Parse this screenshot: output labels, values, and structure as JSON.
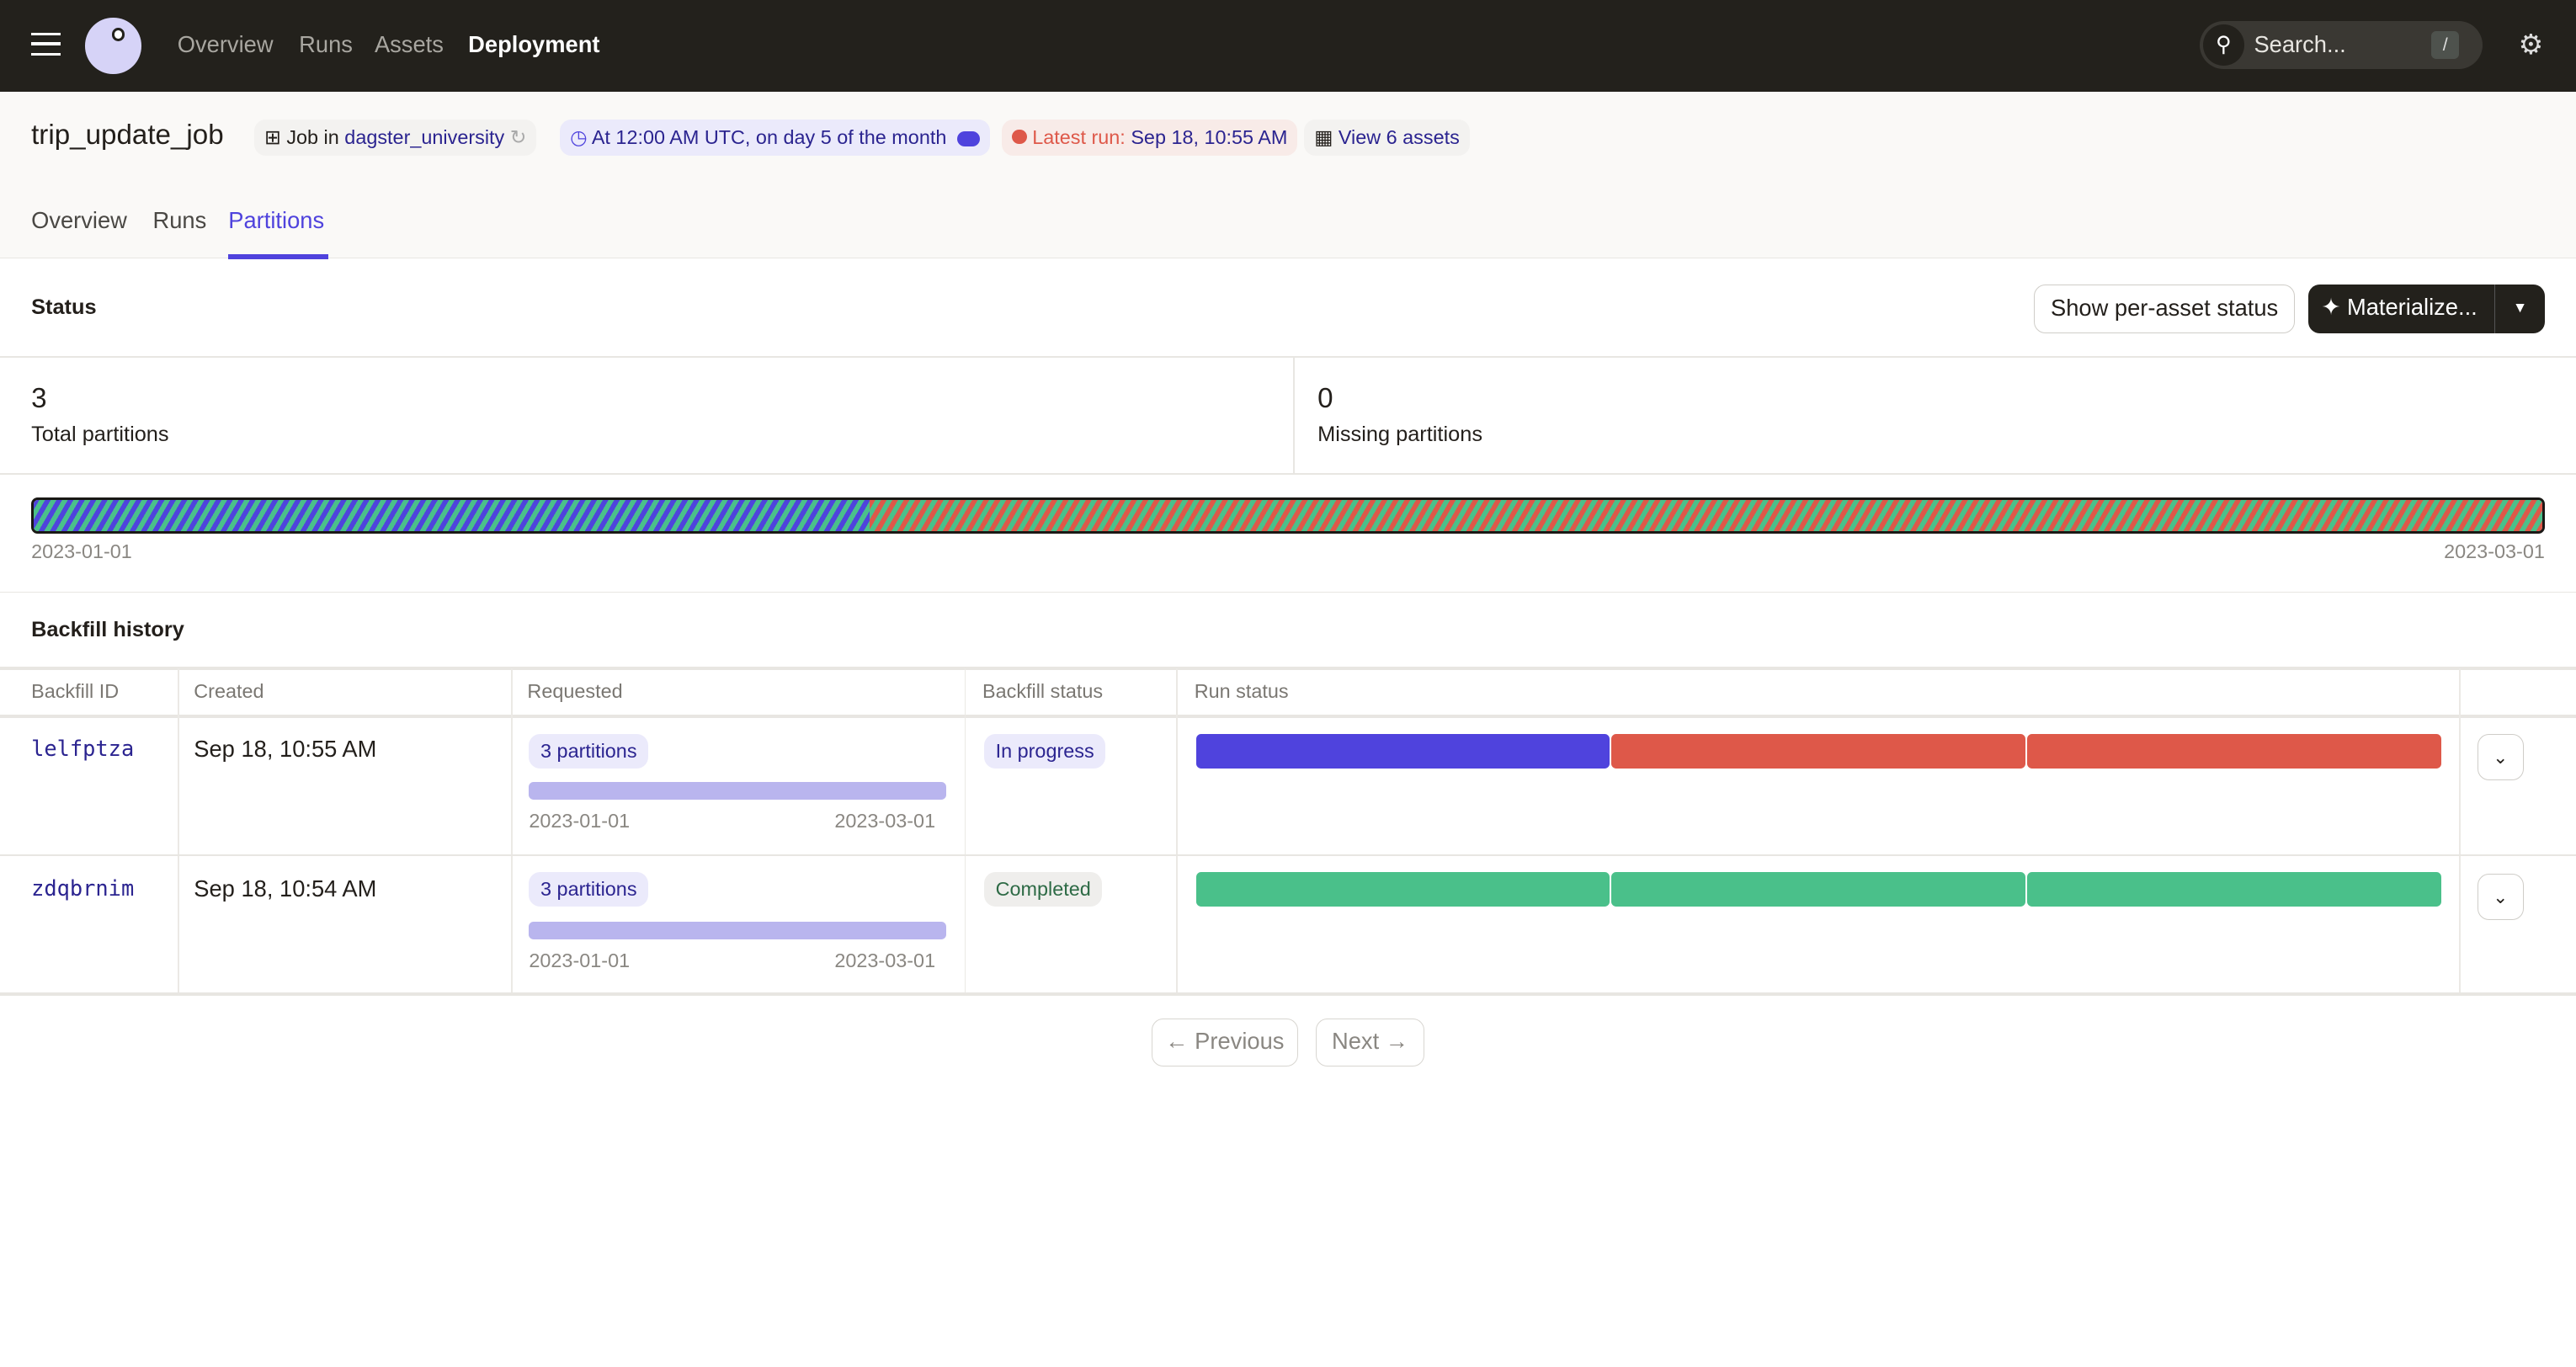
{
  "topbar": {
    "nav": [
      "Overview",
      "Runs",
      "Assets",
      "Deployment"
    ],
    "active": "Deployment",
    "search_placeholder": "Search...",
    "search_shortcut": "/"
  },
  "job": {
    "title": "trip_update_job",
    "job_in_label": "Job in",
    "location": "dagster_university",
    "schedule": "At 12:00 AM UTC, on day 5 of the month",
    "latest_run_label": "Latest run:",
    "latest_run_value": "Sep 18, 10:55 AM",
    "view_assets": "View 6 assets"
  },
  "tabs": [
    "Overview",
    "Runs",
    "Partitions"
  ],
  "active_tab": "Partitions",
  "status": {
    "title": "Status",
    "show_per_asset": "Show per-asset status",
    "materialize": "Materialize..."
  },
  "stats": {
    "total": "3",
    "total_label": "Total partitions",
    "missing": "0",
    "missing_label": "Missing partitions"
  },
  "partition_bar": {
    "start": "2023-01-01",
    "end": "2023-03-01",
    "segments": [
      {
        "fraction": 0.3333,
        "status": "in progress / succeeded"
      },
      {
        "fraction": 0.6667,
        "status": "failed / succeeded"
      }
    ]
  },
  "backfill": {
    "title": "Backfill history",
    "columns": [
      "Backfill ID",
      "Created",
      "Requested",
      "Backfill status",
      "Run status"
    ],
    "rows": [
      {
        "id": "lelfptza",
        "created": "Sep 18, 10:55 AM",
        "requested": "3 partitions",
        "range_start": "2023-01-01",
        "range_end": "2023-03-01",
        "status": "In progress",
        "run_status": [
          "in-progress",
          "failed",
          "failed"
        ]
      },
      {
        "id": "zdqbrnim",
        "created": "Sep 18, 10:54 AM",
        "requested": "3 partitions",
        "range_start": "2023-01-01",
        "range_end": "2023-03-01",
        "status": "Completed",
        "run_status": [
          "succeeded",
          "succeeded",
          "succeeded"
        ]
      }
    ]
  },
  "pagination": {
    "previous": "Previous",
    "next": "Next"
  },
  "colors": {
    "accent": "#4f43dd",
    "success": "#4ac08a",
    "failure": "#de5849",
    "topbar": "#23211c",
    "requested_bar": "#b9b5ee"
  }
}
